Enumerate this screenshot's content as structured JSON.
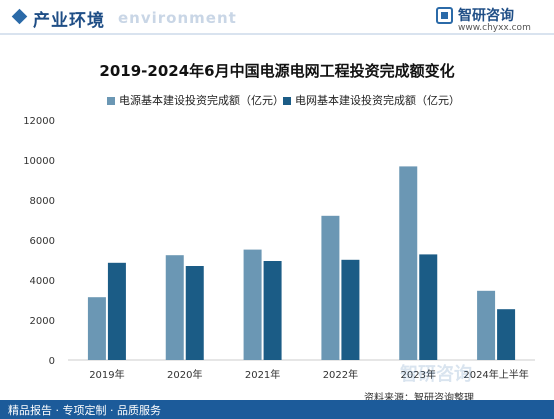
{
  "header": {
    "section_title": "产业环境",
    "section_watermark": "environment",
    "logo_name": "智研咨询",
    "logo_url": "www.chyxx.com"
  },
  "chart_data": {
    "type": "bar",
    "title": "2019-2024年6月中国电源电网工程投资完成额变化",
    "categories": [
      "2019年",
      "2020年",
      "2021年",
      "2022年",
      "2023年",
      "2024年上半年"
    ],
    "series": [
      {
        "name": "电源基本建设投资完成额（亿元）",
        "color": "#6b97b4",
        "values": [
          3140,
          5240,
          5520,
          7210,
          9680,
          3460
        ]
      },
      {
        "name": "电网基本建设投资完成额（亿元）",
        "color": "#1b5c86",
        "values": [
          4860,
          4700,
          4950,
          5010,
          5280,
          2540
        ]
      }
    ],
    "yticks": [
      0,
      2000,
      4000,
      6000,
      8000,
      10000,
      12000
    ],
    "ylim": [
      0,
      12000
    ],
    "xlabel": "",
    "ylabel": "",
    "legend_position": "top",
    "grid": false
  },
  "footer": {
    "left_text": "精品报告 · 专项定制 · 品质服务",
    "source_text": "资料来源：智研咨询整理"
  },
  "watermark": "智研咨询",
  "colors": {
    "brand": "#1c5b9a",
    "axis": "#cccccc"
  }
}
